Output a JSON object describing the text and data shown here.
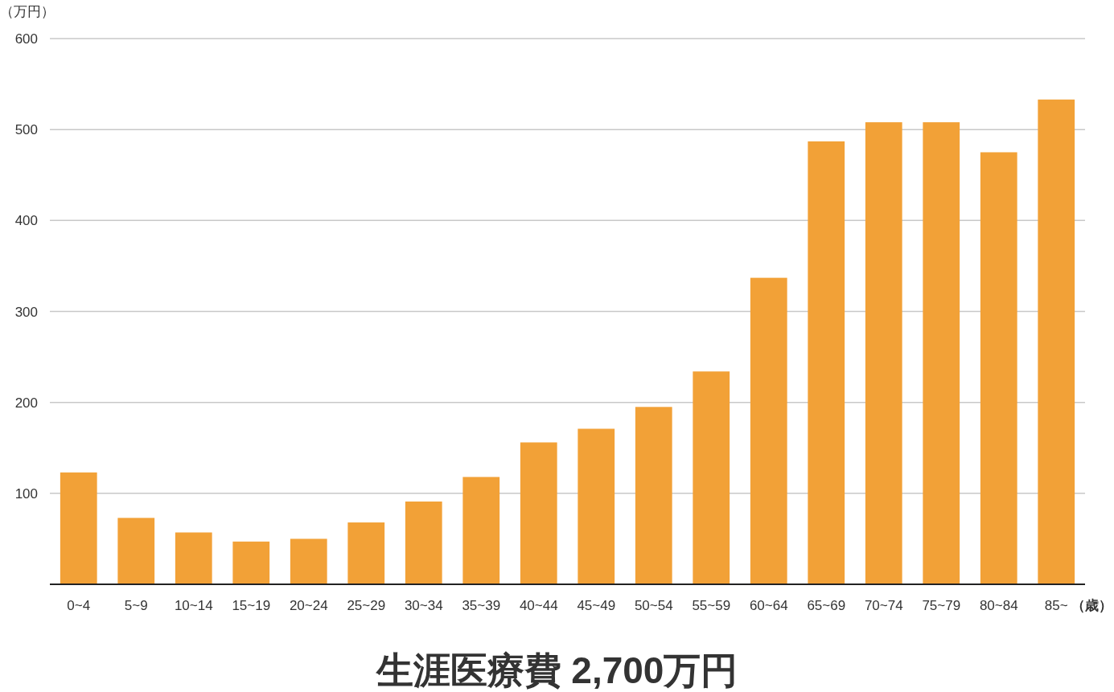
{
  "chart_data": {
    "type": "bar",
    "title": "生涯医療費 2,700万円",
    "ylabel": "（万円）",
    "xlabel": "（歳）",
    "categories": [
      "0~4",
      "5~9",
      "10~14",
      "15~19",
      "20~24",
      "25~29",
      "30~34",
      "35~39",
      "40~44",
      "45~49",
      "50~54",
      "55~59",
      "60~64",
      "65~69",
      "70~74",
      "75~79",
      "80~84",
      "85~"
    ],
    "values": [
      123,
      73,
      57,
      47,
      50,
      68,
      91,
      118,
      156,
      171,
      195,
      234,
      337,
      487,
      508,
      508,
      475,
      533
    ],
    "color": "#f2a137",
    "ylim": [
      0,
      600
    ],
    "yticks": [
      100,
      200,
      300,
      400,
      500,
      600
    ],
    "grid": "y"
  }
}
